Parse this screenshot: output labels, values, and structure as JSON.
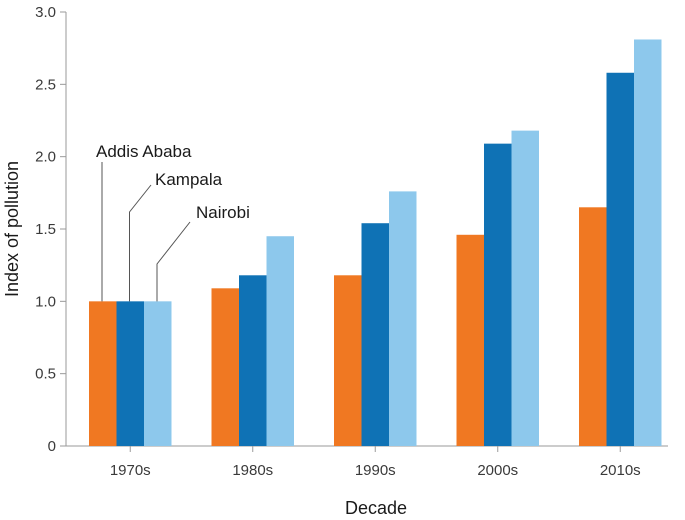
{
  "chart_data": {
    "type": "bar",
    "xlabel": "Decade",
    "ylabel": "Index of pollution",
    "categories": [
      "1970s",
      "1980s",
      "1990s",
      "2000s",
      "2010s"
    ],
    "series": [
      {
        "name": "Addis Ababa",
        "color": "#f07822",
        "values": [
          1.0,
          1.09,
          1.18,
          1.46,
          1.65
        ]
      },
      {
        "name": "Kampala",
        "color": "#0f72b5",
        "values": [
          1.0,
          1.18,
          1.54,
          2.09,
          2.58
        ]
      },
      {
        "name": "Nairobi",
        "color": "#8dc8ec",
        "values": [
          1.0,
          1.45,
          1.76,
          2.18,
          2.81
        ]
      }
    ],
    "yticks": [
      "0",
      "0.5",
      "1.0",
      "1.5",
      "2.0",
      "2.5",
      "3.0"
    ],
    "ylim": [
      0,
      3.0
    ],
    "grid": false,
    "legend": "callout labels on 1970s bars"
  }
}
